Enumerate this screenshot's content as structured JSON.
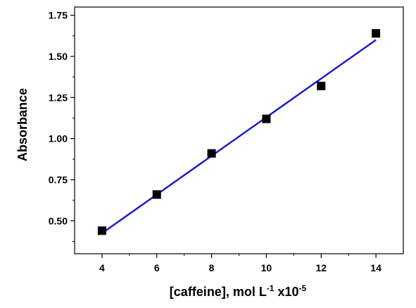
{
  "chart_data": {
    "type": "scatter",
    "xlabel": "[caffeine], mol L",
    "xlabel_sup1": "-1",
    "xlabel_mid": " x10",
    "xlabel_sup2": "-5",
    "ylabel": "Absorbance",
    "xlim": [
      3,
      15
    ],
    "ylim": [
      0.3,
      1.8
    ],
    "x_ticks": [
      "4",
      "6",
      "8",
      "10",
      "12",
      "14"
    ],
    "y_ticks": [
      "0.50",
      "0.75",
      "1.00",
      "1.25",
      "1.50",
      "1.75"
    ],
    "grid": false,
    "legend": "none",
    "series": [
      {
        "type": "scatter",
        "marker": "square",
        "color": "#000000",
        "x": [
          4,
          6,
          8,
          10,
          12,
          14
        ],
        "y": [
          0.44,
          0.66,
          0.91,
          1.12,
          1.32,
          1.64
        ]
      },
      {
        "type": "line",
        "color": "#1515d0",
        "x": [
          4,
          14
        ],
        "y": [
          0.425,
          1.6
        ]
      }
    ]
  }
}
